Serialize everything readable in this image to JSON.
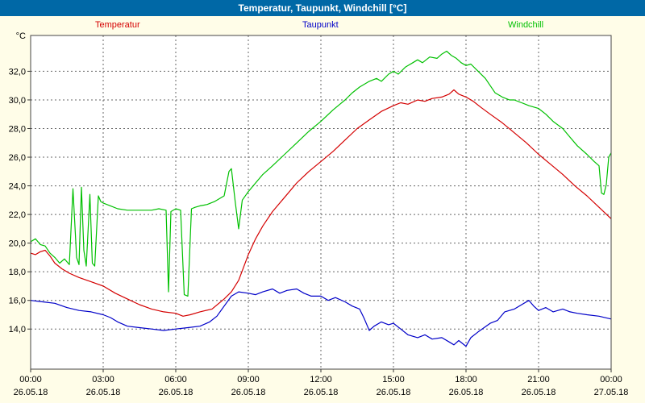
{
  "title_bar": {
    "text": "Temperatur, Taupunkt, Windchill [°C]"
  },
  "colors": {
    "titlebar_bg": "#0068a6",
    "background": "#fffde8",
    "plot_bg": "#ffffff",
    "temperatur": "#d40000",
    "taupunkt": "#0000c8",
    "windchill": "#00c000"
  },
  "chart_data": {
    "type": "line",
    "title": "Temperatur, Taupunkt, Windchill [°C]",
    "ylabel": "°C",
    "xlabel": "",
    "grid": "dashed",
    "legend_position": "top",
    "xlim": [
      0,
      24
    ],
    "ylim": [
      11.2,
      34.5
    ],
    "y_ticks": [
      {
        "v": 32,
        "label": "32,0"
      },
      {
        "v": 30,
        "label": "30,0"
      },
      {
        "v": 28,
        "label": "28,0"
      },
      {
        "v": 26,
        "label": "26,0"
      },
      {
        "v": 24,
        "label": "24,0"
      },
      {
        "v": 22,
        "label": "22,0"
      },
      {
        "v": 20,
        "label": "20,0"
      },
      {
        "v": 18,
        "label": "18,0"
      },
      {
        "v": 16,
        "label": "16,0"
      },
      {
        "v": 14,
        "label": "14,0"
      }
    ],
    "x_ticks": [
      {
        "h": 0,
        "label": "00:00",
        "date": "26.05.18"
      },
      {
        "h": 3,
        "label": "03:00",
        "date": "26.05.18"
      },
      {
        "h": 6,
        "label": "06:00",
        "date": "26.05.18"
      },
      {
        "h": 9,
        "label": "09:00",
        "date": "26.05.18"
      },
      {
        "h": 12,
        "label": "12:00",
        "date": "26.05.18"
      },
      {
        "h": 15,
        "label": "15:00",
        "date": "26.05.18"
      },
      {
        "h": 18,
        "label": "18:00",
        "date": "26.05.18"
      },
      {
        "h": 21,
        "label": "21:00",
        "date": "26.05.18"
      },
      {
        "h": 24,
        "label": "00:00",
        "date": "27.05.18"
      }
    ],
    "series": [
      {
        "name": "Temperatur",
        "color": "#d40000",
        "points": [
          [
            0,
            19.3
          ],
          [
            0.2,
            19.2
          ],
          [
            0.4,
            19.4
          ],
          [
            0.6,
            19.5
          ],
          [
            0.8,
            19.1
          ],
          [
            1,
            18.6
          ],
          [
            1.3,
            18.2
          ],
          [
            1.6,
            17.9
          ],
          [
            2,
            17.6
          ],
          [
            2.5,
            17.3
          ],
          [
            3,
            17.0
          ],
          [
            3.5,
            16.5
          ],
          [
            4,
            16.1
          ],
          [
            4.5,
            15.7
          ],
          [
            5,
            15.4
          ],
          [
            5.5,
            15.2
          ],
          [
            6,
            15.1
          ],
          [
            6.3,
            14.9
          ],
          [
            6.6,
            15.0
          ],
          [
            7,
            15.2
          ],
          [
            7.5,
            15.4
          ],
          [
            8,
            16.1
          ],
          [
            8.3,
            16.6
          ],
          [
            8.6,
            17.4
          ],
          [
            9,
            19.2
          ],
          [
            9.3,
            20.3
          ],
          [
            9.6,
            21.2
          ],
          [
            10,
            22.2
          ],
          [
            10.5,
            23.2
          ],
          [
            11,
            24.2
          ],
          [
            11.5,
            25.0
          ],
          [
            12,
            25.7
          ],
          [
            12.5,
            26.4
          ],
          [
            13,
            27.2
          ],
          [
            13.5,
            28.0
          ],
          [
            14,
            28.6
          ],
          [
            14.5,
            29.2
          ],
          [
            15,
            29.6
          ],
          [
            15.3,
            29.8
          ],
          [
            15.6,
            29.7
          ],
          [
            16,
            30.0
          ],
          [
            16.3,
            29.9
          ],
          [
            16.6,
            30.1
          ],
          [
            17,
            30.2
          ],
          [
            17.3,
            30.4
          ],
          [
            17.5,
            30.7
          ],
          [
            17.7,
            30.4
          ],
          [
            18,
            30.2
          ],
          [
            18.3,
            29.9
          ],
          [
            18.6,
            29.5
          ],
          [
            19,
            29.0
          ],
          [
            19.5,
            28.4
          ],
          [
            20,
            27.7
          ],
          [
            20.5,
            27.0
          ],
          [
            21,
            26.2
          ],
          [
            21.5,
            25.5
          ],
          [
            22,
            24.8
          ],
          [
            22.5,
            24.0
          ],
          [
            23,
            23.3
          ],
          [
            23.5,
            22.5
          ],
          [
            24,
            21.7
          ]
        ]
      },
      {
        "name": "Taupunkt",
        "color": "#0000c8",
        "points": [
          [
            0,
            16.0
          ],
          [
            0.5,
            15.9
          ],
          [
            1,
            15.8
          ],
          [
            1.5,
            15.5
          ],
          [
            2,
            15.3
          ],
          [
            2.5,
            15.2
          ],
          [
            3,
            15.0
          ],
          [
            3.3,
            14.8
          ],
          [
            3.6,
            14.5
          ],
          [
            4,
            14.2
          ],
          [
            4.5,
            14.1
          ],
          [
            5,
            14.0
          ],
          [
            5.5,
            13.9
          ],
          [
            6,
            14.0
          ],
          [
            6.5,
            14.1
          ],
          [
            7,
            14.2
          ],
          [
            7.4,
            14.5
          ],
          [
            7.7,
            14.9
          ],
          [
            8,
            15.6
          ],
          [
            8.3,
            16.3
          ],
          [
            8.6,
            16.6
          ],
          [
            9,
            16.5
          ],
          [
            9.3,
            16.4
          ],
          [
            9.6,
            16.6
          ],
          [
            10,
            16.8
          ],
          [
            10.3,
            16.5
          ],
          [
            10.6,
            16.7
          ],
          [
            11,
            16.8
          ],
          [
            11.3,
            16.5
          ],
          [
            11.6,
            16.3
          ],
          [
            12,
            16.3
          ],
          [
            12.3,
            16.0
          ],
          [
            12.6,
            16.2
          ],
          [
            13,
            15.9
          ],
          [
            13.3,
            15.6
          ],
          [
            13.6,
            15.4
          ],
          [
            13.8,
            14.7
          ],
          [
            14,
            13.9
          ],
          [
            14.2,
            14.2
          ],
          [
            14.5,
            14.5
          ],
          [
            14.8,
            14.3
          ],
          [
            15,
            14.4
          ],
          [
            15.3,
            14.0
          ],
          [
            15.6,
            13.6
          ],
          [
            16,
            13.4
          ],
          [
            16.3,
            13.6
          ],
          [
            16.6,
            13.3
          ],
          [
            17,
            13.4
          ],
          [
            17.3,
            13.1
          ],
          [
            17.5,
            12.9
          ],
          [
            17.7,
            13.2
          ],
          [
            18,
            12.8
          ],
          [
            18.2,
            13.4
          ],
          [
            18.5,
            13.8
          ],
          [
            19,
            14.4
          ],
          [
            19.3,
            14.6
          ],
          [
            19.6,
            15.2
          ],
          [
            20,
            15.4
          ],
          [
            20.3,
            15.7
          ],
          [
            20.6,
            16.0
          ],
          [
            20.8,
            15.6
          ],
          [
            21,
            15.3
          ],
          [
            21.3,
            15.5
          ],
          [
            21.6,
            15.2
          ],
          [
            22,
            15.4
          ],
          [
            22.3,
            15.2
          ],
          [
            22.6,
            15.1
          ],
          [
            23,
            15.0
          ],
          [
            23.5,
            14.9
          ],
          [
            24,
            14.7
          ]
        ]
      },
      {
        "name": "Windchill",
        "color": "#00c000",
        "points": [
          [
            0,
            20.1
          ],
          [
            0.2,
            20.3
          ],
          [
            0.4,
            19.9
          ],
          [
            0.6,
            19.8
          ],
          [
            0.8,
            19.3
          ],
          [
            1,
            19.0
          ],
          [
            1.2,
            18.6
          ],
          [
            1.4,
            18.9
          ],
          [
            1.6,
            18.5
          ],
          [
            1.75,
            23.8
          ],
          [
            1.9,
            19.0
          ],
          [
            2,
            18.5
          ],
          [
            2.1,
            23.9
          ],
          [
            2.2,
            19.5
          ],
          [
            2.3,
            18.4
          ],
          [
            2.45,
            23.4
          ],
          [
            2.55,
            18.6
          ],
          [
            2.65,
            18.4
          ],
          [
            2.8,
            23.3
          ],
          [
            2.9,
            22.9
          ],
          [
            3,
            22.8
          ],
          [
            3.3,
            22.6
          ],
          [
            3.6,
            22.4
          ],
          [
            4,
            22.3
          ],
          [
            4.5,
            22.3
          ],
          [
            5,
            22.3
          ],
          [
            5.3,
            22.4
          ],
          [
            5.6,
            22.3
          ],
          [
            5.7,
            16.6
          ],
          [
            5.8,
            22.2
          ],
          [
            6,
            22.4
          ],
          [
            6.2,
            22.3
          ],
          [
            6.35,
            16.4
          ],
          [
            6.5,
            16.3
          ],
          [
            6.65,
            22.4
          ],
          [
            6.8,
            22.5
          ],
          [
            7,
            22.6
          ],
          [
            7.3,
            22.7
          ],
          [
            7.6,
            22.9
          ],
          [
            8,
            23.3
          ],
          [
            8.2,
            25.0
          ],
          [
            8.3,
            25.2
          ],
          [
            8.45,
            23.0
          ],
          [
            8.6,
            21.0
          ],
          [
            8.75,
            23.0
          ],
          [
            9,
            23.6
          ],
          [
            9.3,
            24.2
          ],
          [
            9.6,
            24.8
          ],
          [
            10,
            25.4
          ],
          [
            10.5,
            26.2
          ],
          [
            11,
            27.0
          ],
          [
            11.5,
            27.8
          ],
          [
            12,
            28.5
          ],
          [
            12.5,
            29.3
          ],
          [
            13,
            30.0
          ],
          [
            13.3,
            30.5
          ],
          [
            13.6,
            30.9
          ],
          [
            14,
            31.3
          ],
          [
            14.3,
            31.5
          ],
          [
            14.5,
            31.3
          ],
          [
            14.8,
            31.8
          ],
          [
            15,
            32.0
          ],
          [
            15.2,
            31.8
          ],
          [
            15.5,
            32.3
          ],
          [
            15.8,
            32.6
          ],
          [
            16,
            32.8
          ],
          [
            16.2,
            32.6
          ],
          [
            16.5,
            33.0
          ],
          [
            16.8,
            32.9
          ],
          [
            17,
            33.2
          ],
          [
            17.2,
            33.4
          ],
          [
            17.4,
            33.1
          ],
          [
            17.6,
            32.9
          ],
          [
            17.8,
            32.6
          ],
          [
            18,
            32.4
          ],
          [
            18.2,
            32.5
          ],
          [
            18.5,
            32.0
          ],
          [
            18.8,
            31.5
          ],
          [
            19,
            31.0
          ],
          [
            19.2,
            30.5
          ],
          [
            19.5,
            30.2
          ],
          [
            19.8,
            30.0
          ],
          [
            20,
            30.0
          ],
          [
            20.3,
            29.8
          ],
          [
            20.6,
            29.6
          ],
          [
            21,
            29.4
          ],
          [
            21.3,
            29.0
          ],
          [
            21.6,
            28.5
          ],
          [
            22,
            28.0
          ],
          [
            22.3,
            27.4
          ],
          [
            22.6,
            26.8
          ],
          [
            23,
            26.2
          ],
          [
            23.3,
            25.7
          ],
          [
            23.5,
            25.4
          ],
          [
            23.6,
            23.5
          ],
          [
            23.7,
            23.4
          ],
          [
            23.8,
            24.1
          ],
          [
            23.9,
            26.0
          ],
          [
            24,
            26.3
          ]
        ]
      }
    ]
  }
}
